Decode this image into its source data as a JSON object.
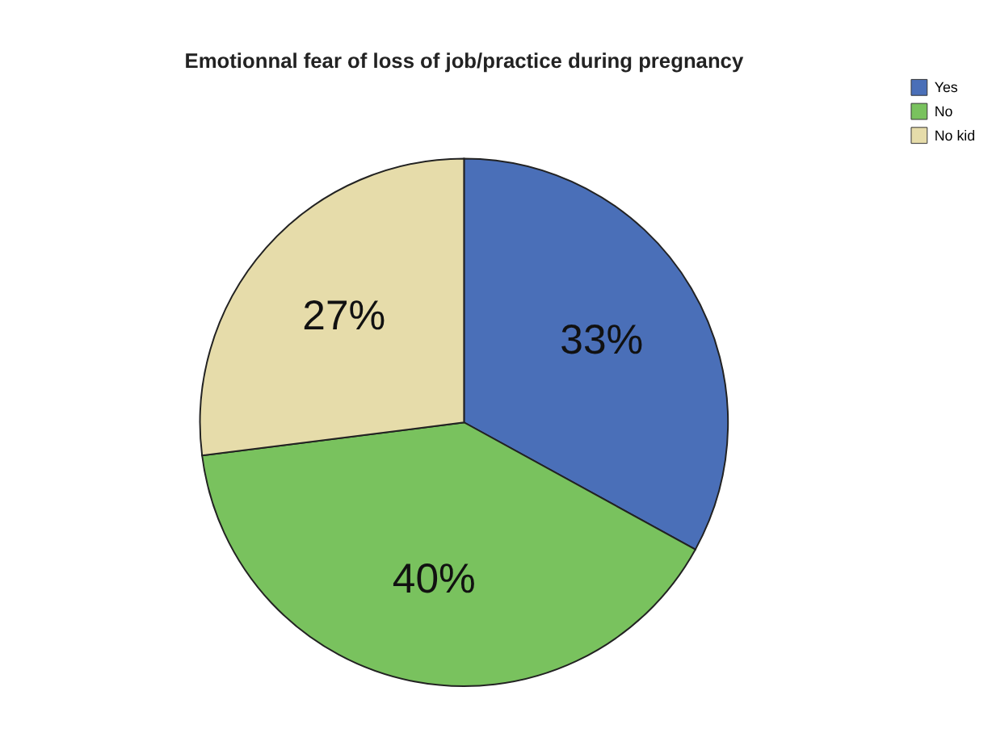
{
  "chart_data": {
    "type": "pie",
    "title": "Emotionnal fear of loss of job/practice during pregnancy",
    "categories": [
      "Yes",
      "No",
      "No kid"
    ],
    "values": [
      33,
      40,
      27
    ],
    "colors": [
      "#4a6fb8",
      "#79c25e",
      "#e6dcaa"
    ],
    "value_labels": [
      "33%",
      "40%",
      "27%"
    ],
    "legend": "top right"
  }
}
